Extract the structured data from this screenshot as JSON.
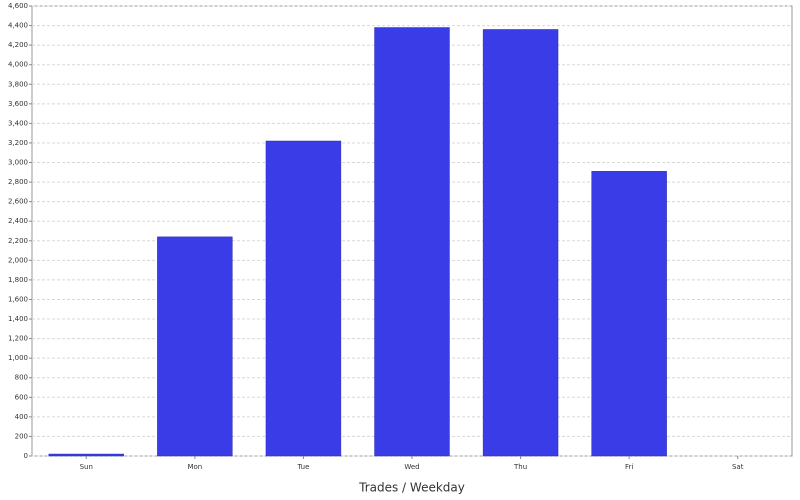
{
  "chart_data": {
    "type": "bar",
    "x_label": "Trades / Weekday",
    "categories": [
      "Sun",
      "Mon",
      "Tue",
      "Wed",
      "Thu",
      "Fri",
      "Sat"
    ],
    "values": [
      20,
      2240,
      3220,
      4380,
      4360,
      2910,
      0
    ],
    "color": "#3a3ce8",
    "ylim": [
      0,
      4600
    ],
    "yticks": [
      0,
      200,
      400,
      600,
      800,
      {
        "value": 1000,
        "label": "1,000"
      },
      {
        "value": 1200,
        "label": "1,200"
      },
      {
        "value": 1400,
        "label": "1,400"
      },
      {
        "value": 1600,
        "label": "1,600"
      },
      {
        "value": 1800,
        "label": "1,800"
      },
      {
        "value": 2000,
        "label": "2,000"
      },
      {
        "value": 2200,
        "label": "2,200"
      },
      {
        "value": 2400,
        "label": "2,400"
      },
      {
        "value": 2600,
        "label": "2,600"
      },
      {
        "value": 2800,
        "label": "2,800"
      },
      {
        "value": 3000,
        "label": "3,000"
      },
      {
        "value": 3200,
        "label": "3,200"
      },
      {
        "value": 3400,
        "label": "3,400"
      },
      {
        "value": 3600,
        "label": "3,600"
      },
      {
        "value": 3800,
        "label": "3,800"
      },
      {
        "value": 4000,
        "label": "4,000"
      },
      {
        "value": 4200,
        "label": "4,200"
      },
      {
        "value": 4400,
        "label": "4,400"
      },
      {
        "value": 4600,
        "label": "4,600"
      }
    ],
    "grid": true
  }
}
